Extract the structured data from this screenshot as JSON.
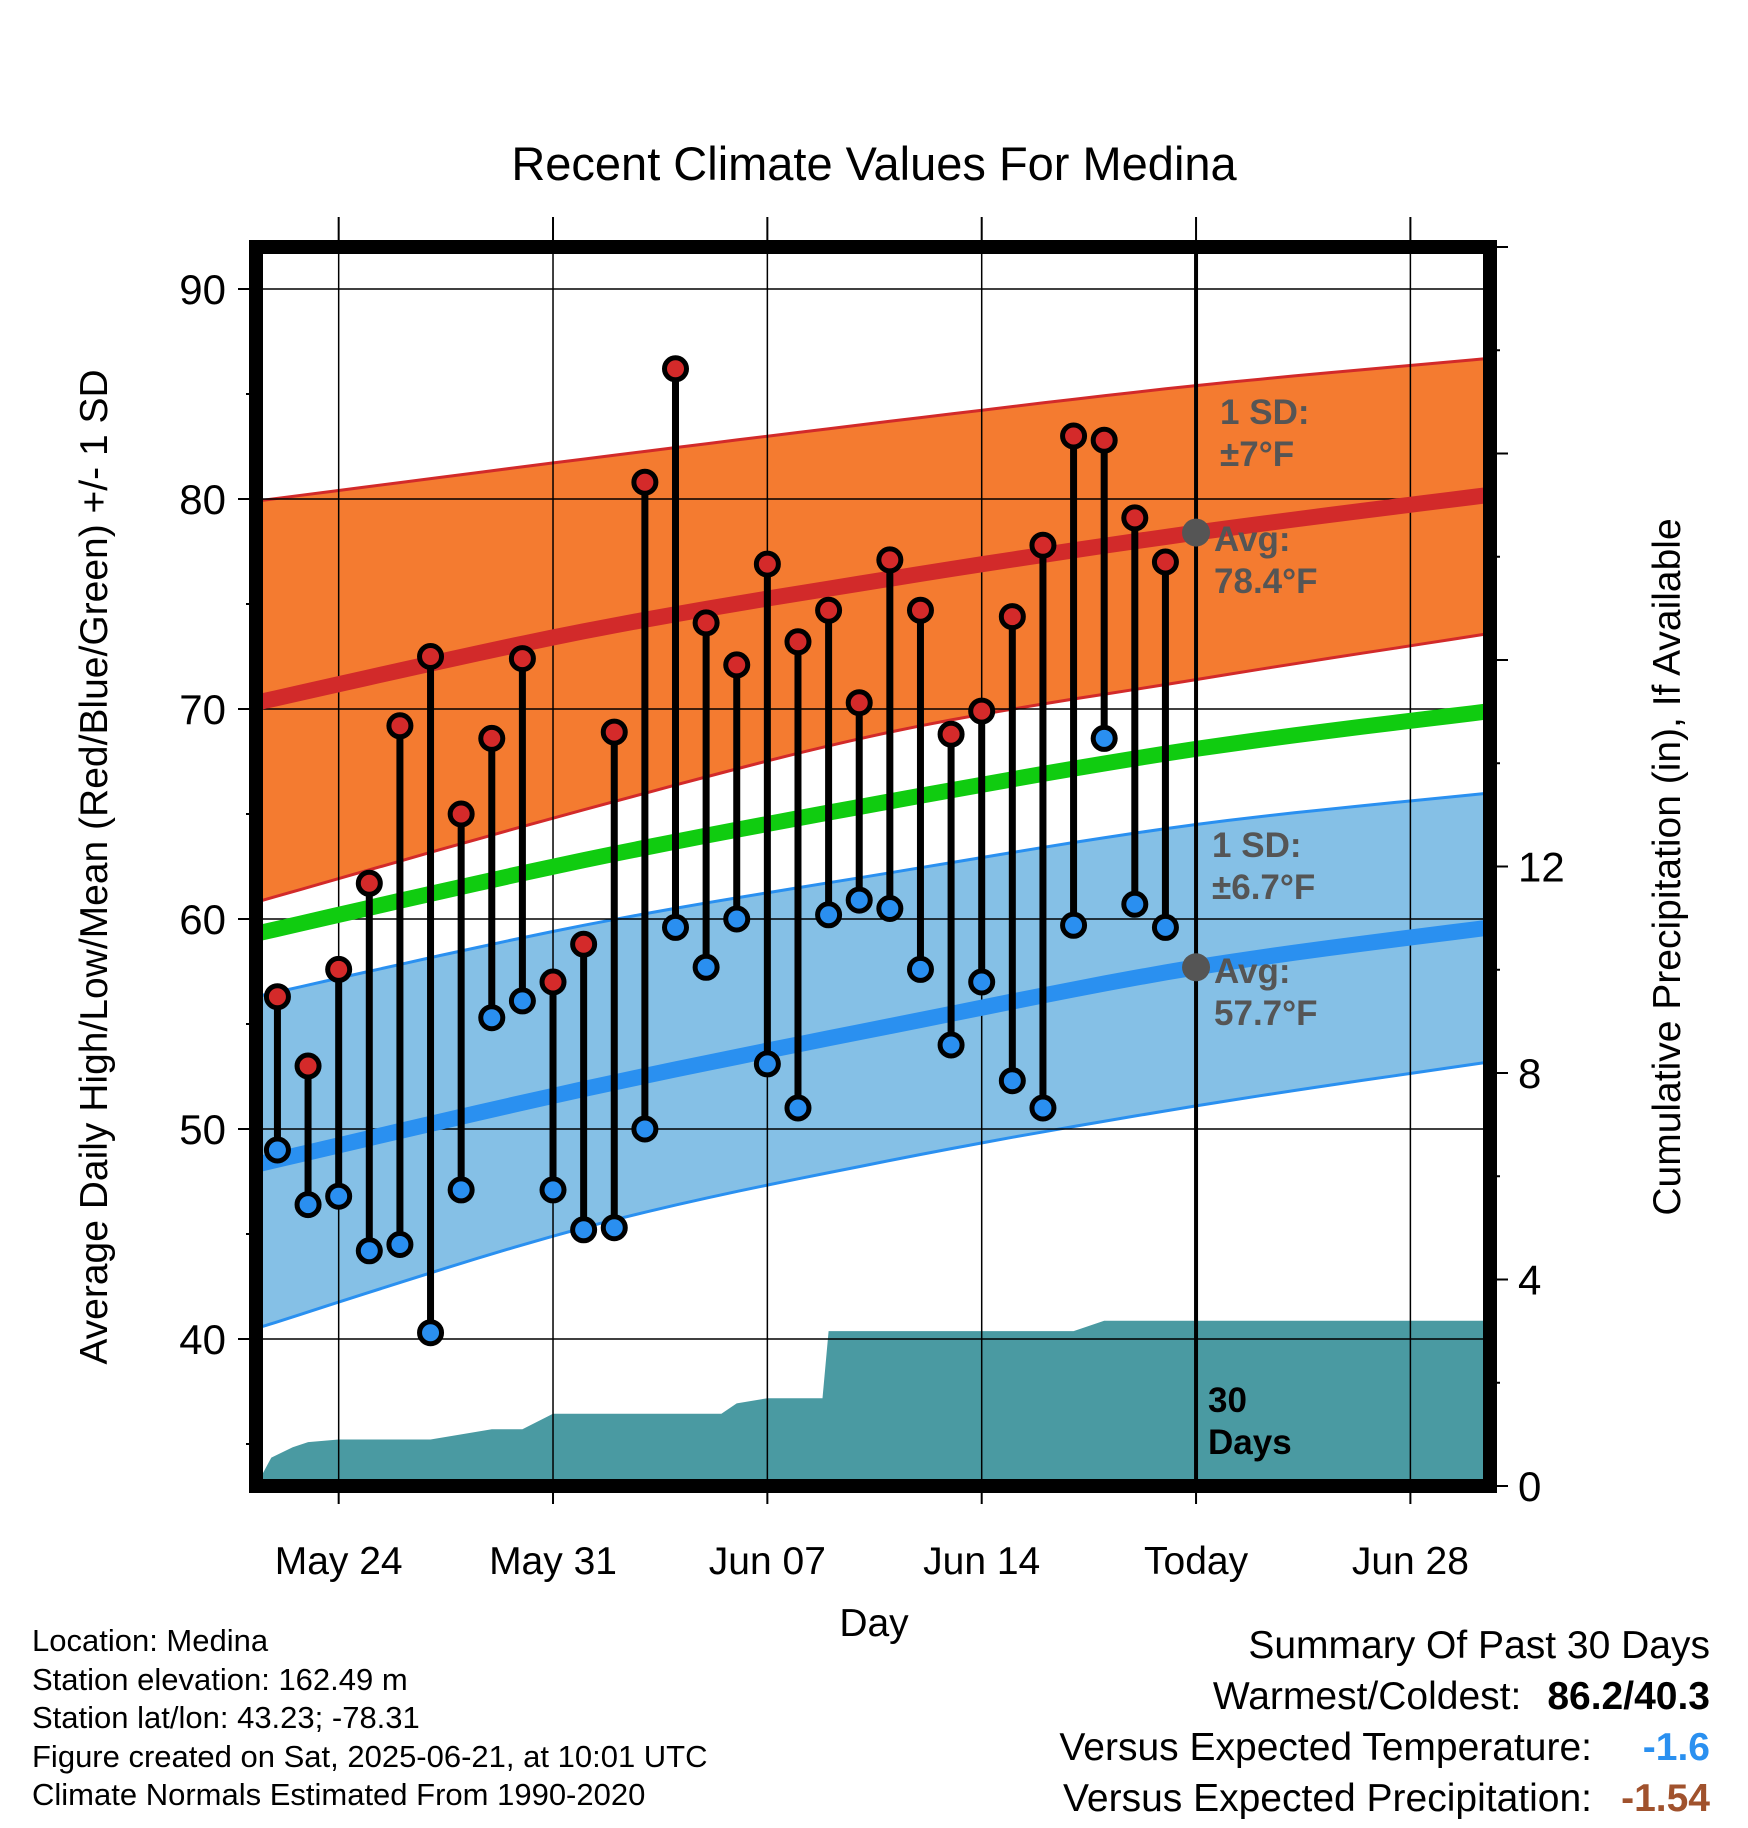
{
  "chart_data": {
    "type": "scatter",
    "title": "Recent Climate Values For Medina",
    "xlabel": "Day",
    "ylabel": "Average Daily High/Low/Mean (Red/Blue/Green) +/- 1 SD",
    "y2label": "Cumulative Precipitation (in), If Available",
    "ylim": [
      33,
      92
    ],
    "y2lim": [
      0,
      24
    ],
    "yticks": [
      40,
      50,
      60,
      70,
      80,
      90
    ],
    "y2ticks": [
      0,
      4,
      8,
      12
    ],
    "xticks": [
      {
        "day": 24,
        "label": "May 24"
      },
      {
        "day": 31,
        "label": "May 31"
      },
      {
        "day": 38,
        "label": "Jun 07"
      },
      {
        "day": 45,
        "label": "Jun 14"
      },
      {
        "day": 52,
        "label": "Today"
      },
      {
        "day": 59,
        "label": "Jun 28"
      }
    ],
    "xlim": [
      21.3,
      61.6
    ],
    "grid": true,
    "today_day": 52,
    "days": [
      22,
      23,
      24,
      25,
      26,
      27,
      28,
      29,
      30,
      31,
      32,
      33,
      34,
      35,
      36,
      37,
      38,
      39,
      40,
      41,
      42,
      43,
      44,
      45,
      46,
      47,
      48,
      49,
      50,
      51
    ],
    "highs": [
      56.3,
      53.0,
      57.6,
      61.7,
      69.2,
      72.5,
      65.0,
      68.6,
      72.4,
      57.0,
      58.8,
      68.9,
      80.8,
      86.2,
      74.1,
      72.1,
      76.9,
      73.2,
      74.7,
      70.3,
      77.1,
      74.7,
      68.8,
      69.9,
      74.4,
      77.8,
      83.0,
      82.8,
      79.1,
      77.0
    ],
    "lows": [
      49.0,
      46.4,
      46.8,
      44.2,
      44.5,
      40.3,
      47.1,
      55.3,
      56.1,
      47.1,
      45.2,
      45.3,
      50.0,
      59.6,
      57.7,
      60.0,
      53.1,
      51.0,
      60.2,
      60.9,
      60.5,
      57.6,
      54.0,
      57.0,
      52.3,
      51.0,
      59.7,
      68.6,
      60.7,
      59.6
    ],
    "normal_high": {
      "days": [
        21.3,
        32,
        42,
        52,
        61.6
      ],
      "values": [
        70.3,
        73.7,
        76.2,
        78.4,
        80.2
      ],
      "sd_upper": [
        79.9,
        81.9,
        83.7,
        85.4,
        86.7
      ],
      "sd_lower": [
        60.8,
        65.2,
        68.9,
        71.4,
        73.6
      ]
    },
    "normal_low": {
      "days": [
        21.3,
        32,
        42,
        52,
        61.6
      ],
      "values": [
        48.3,
        51.9,
        54.9,
        57.7,
        59.6
      ],
      "sd_upper": [
        56.3,
        59.7,
        62.2,
        64.5,
        66.0
      ],
      "sd_lower": [
        40.5,
        45.3,
        48.5,
        51.1,
        53.2
      ]
    },
    "normal_mean": {
      "days": [
        21.3,
        32,
        42,
        52,
        61.6
      ],
      "values": [
        59.3,
        62.8,
        65.6,
        68.1,
        69.9
      ]
    },
    "precip_cumulative": {
      "days": [
        21.3,
        21.8,
        22.5,
        23,
        24,
        25,
        26,
        27,
        28,
        29,
        30,
        31,
        32,
        33,
        34,
        35,
        36,
        36.5,
        37,
        38,
        39,
        39.8,
        40,
        41,
        42,
        43,
        44,
        45,
        46,
        47,
        48,
        49,
        50,
        51,
        52,
        61.6
      ],
      "values": [
        0.0,
        0.55,
        0.75,
        0.85,
        0.9,
        0.9,
        0.9,
        0.9,
        1.0,
        1.1,
        1.1,
        1.4,
        1.4,
        1.4,
        1.4,
        1.4,
        1.4,
        1.4,
        1.6,
        1.7,
        1.7,
        1.7,
        3.0,
        3.0,
        3.0,
        3.0,
        3.0,
        3.0,
        3.0,
        3.0,
        3.0,
        3.2,
        3.2,
        3.2,
        3.2,
        3.2
      ]
    },
    "annotations": {
      "high_sd": [
        "1 SD:",
        "±7°F"
      ],
      "high_avg": [
        "Avg:",
        "78.4°F"
      ],
      "low_sd": [
        "1 SD:",
        "±6.7°F"
      ],
      "low_avg": [
        "Avg:",
        "57.7°F"
      ],
      "precip_days": [
        "30",
        "Days"
      ]
    },
    "colors": {
      "high_band": "#f47b30",
      "high_line": "#d22a2a",
      "low_band": "#85c0e6",
      "low_line": "#2a90f0",
      "mean_line": "#10cc10",
      "precip": "#4a9aa2",
      "high_dot": "#d42a2a",
      "low_dot": "#2a8ff0",
      "avg_marker": "#555555",
      "annotation_text": "#555555"
    }
  },
  "footer": {
    "location": "Location: Medina",
    "elevation": "Station elevation: 162.49 m",
    "latlon": "Station lat/lon: 43.23; -78.31",
    "created": "Figure created on Sat, 2025-06-21, at 10:01 UTC",
    "normals": "Climate Normals Estimated From 1990-2020"
  },
  "summary": {
    "title": "Summary Of Past 30 Days",
    "warm_cold_label": "Warmest/Coldest:",
    "warm_cold_value": "86.2/40.3",
    "temp_label": "Versus Expected Temperature:",
    "temp_value": "-1.6",
    "temp_color": "#2a90f0",
    "precip_label": "Versus Expected Precipitation:",
    "precip_value": "-1.54",
    "precip_color": "#a0522d"
  }
}
